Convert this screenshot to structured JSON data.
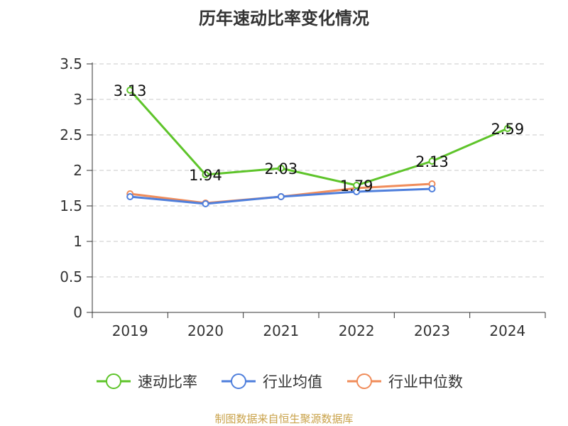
{
  "chart_data": {
    "type": "line",
    "title": "历年速动比率变化情况",
    "categories": [
      "2019",
      "2020",
      "2021",
      "2022",
      "2023",
      "2024"
    ],
    "ylim": [
      0,
      3.5
    ],
    "yticks": [
      0,
      0.5,
      1,
      1.5,
      2,
      2.5,
      3,
      3.5
    ],
    "ytick_labels": [
      "0",
      "0.5",
      "1",
      "1.5",
      "2",
      "2.5",
      "3",
      "3.5"
    ],
    "grid": true,
    "legend_position": "bottom",
    "series": [
      {
        "name": "速动比率",
        "color": "#5ec42a",
        "values": [
          3.13,
          1.94,
          2.03,
          1.79,
          2.13,
          2.59
        ],
        "labels": [
          "3.13",
          "1.94",
          "2.03",
          "1.79",
          "2.13",
          "2.59"
        ]
      },
      {
        "name": "行业均值",
        "color": "#4f7fdc",
        "values": [
          1.63,
          1.53,
          1.63,
          1.7,
          1.74,
          null
        ]
      },
      {
        "name": "行业中位数",
        "color": "#f08c5a",
        "values": [
          1.67,
          1.54,
          1.63,
          1.75,
          1.81,
          null
        ]
      }
    ]
  },
  "source": "制图数据来自恒生聚源数据库"
}
